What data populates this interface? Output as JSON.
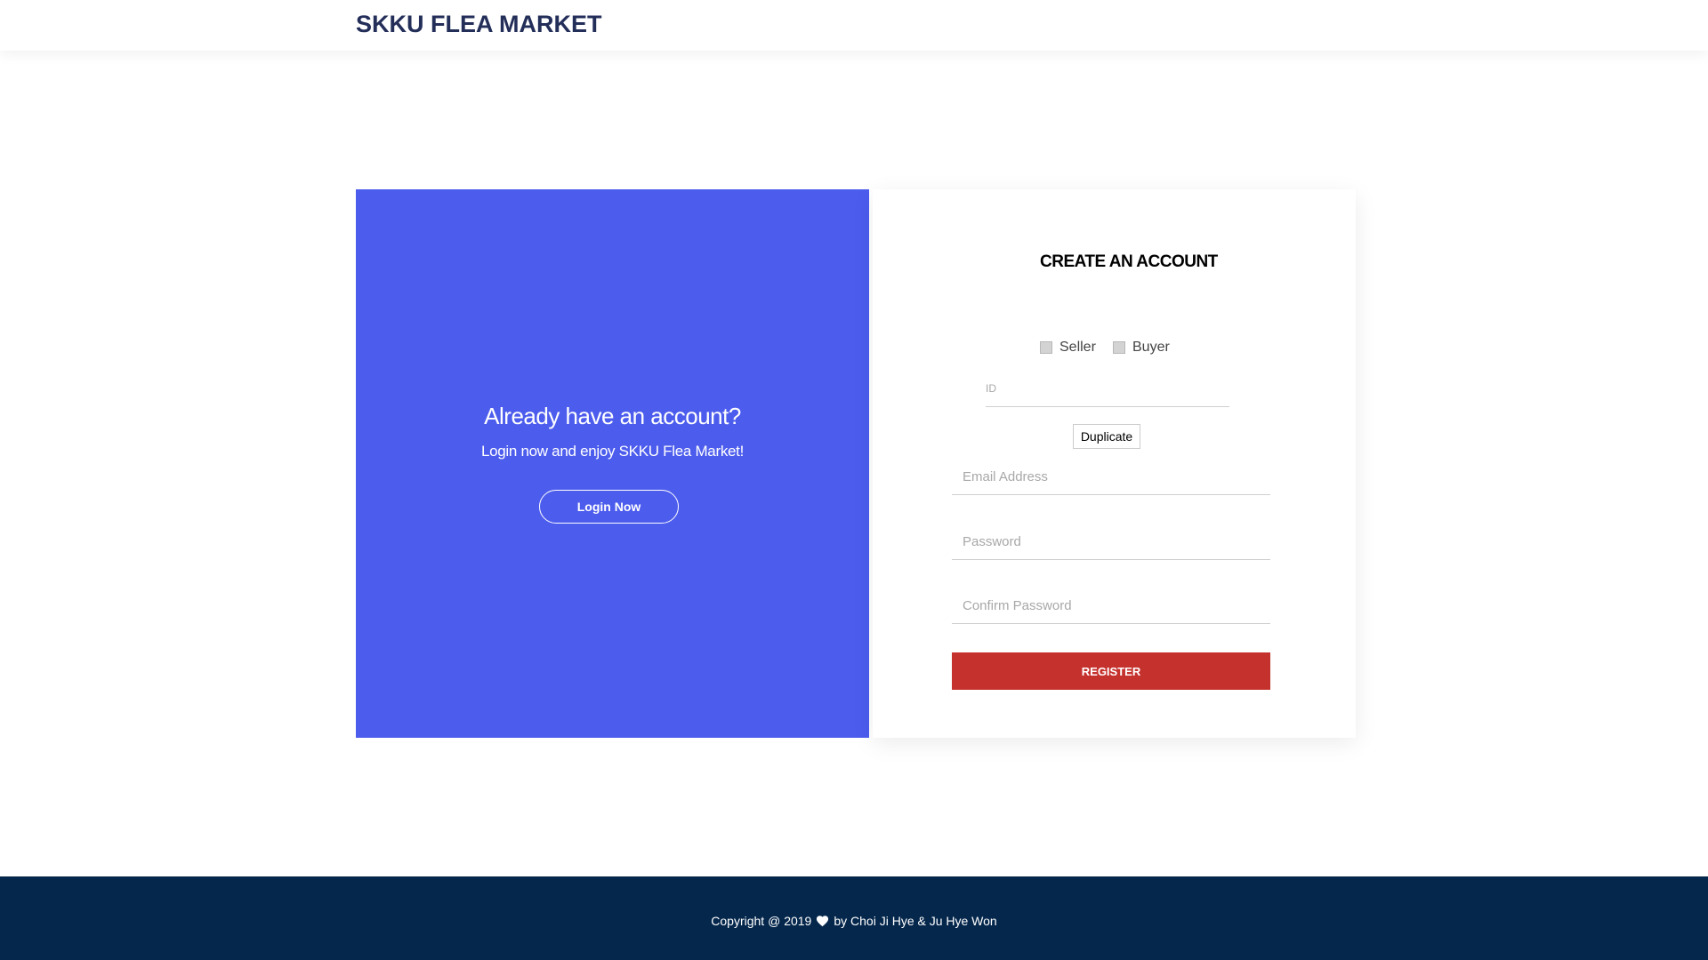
{
  "header": {
    "title": "SKKU FLEA MARKET"
  },
  "login_panel": {
    "heading": "Already have an account?",
    "subtext": "Login now and enjoy SKKU Flea Market!",
    "login_button": "Login Now",
    "background_color": "#4c5ced"
  },
  "register_card": {
    "title": "CREATE AN ACCOUNT",
    "roles": [
      "Seller",
      "Buyer"
    ],
    "id_placeholder": "ID",
    "duplicate_button": "Duplicate",
    "email_placeholder": "Email Address",
    "password_placeholder": "Password",
    "confirm_placeholder": "Confirm Password",
    "register_button": "REGISTER",
    "register_color": "#c5312d"
  },
  "footer": {
    "copyright_prefix": "Copyright @ 2019",
    "copyright_suffix": "by Choi Ji Hye & Ju Hye Won",
    "icon": "heart-icon",
    "background_color": "#05274c"
  }
}
